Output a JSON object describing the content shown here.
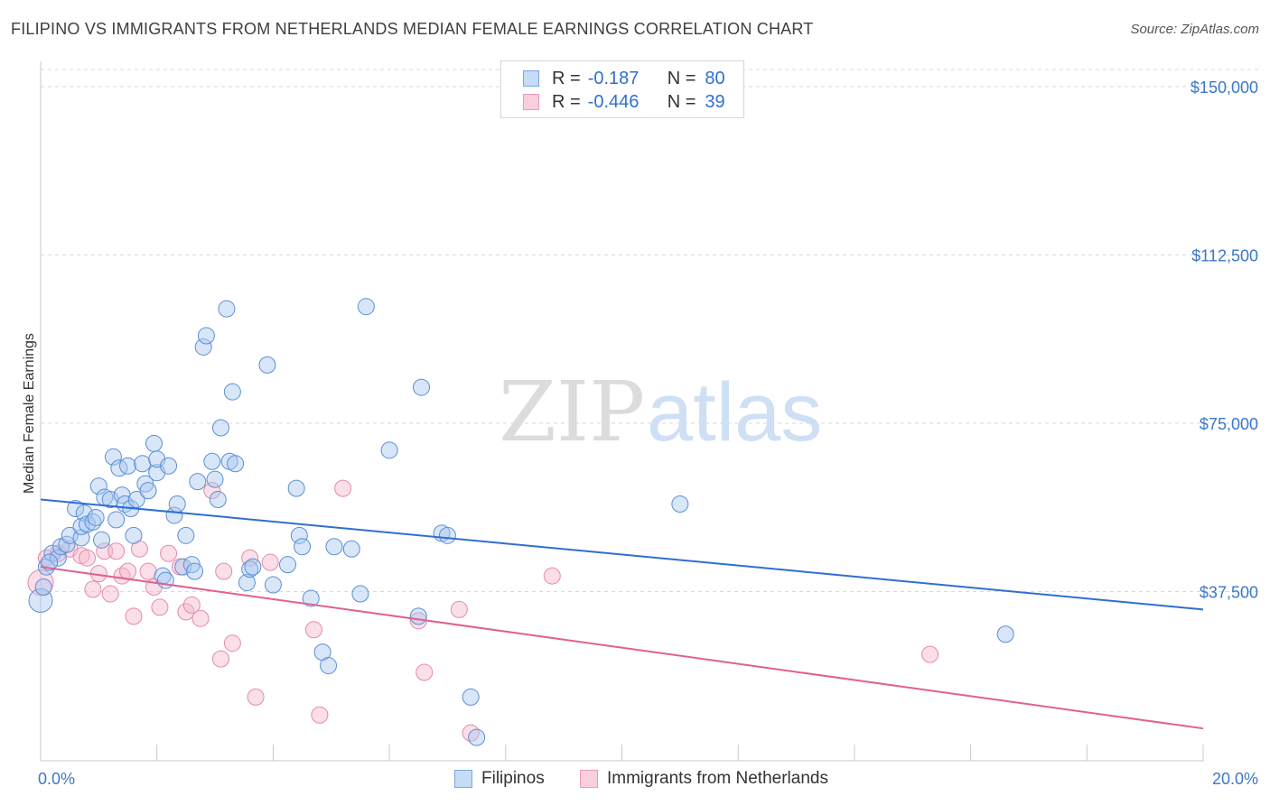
{
  "title": "FILIPINO VS IMMIGRANTS FROM NETHERLANDS MEDIAN FEMALE EARNINGS CORRELATION CHART",
  "source": "Source: ZipAtlas.com",
  "watermark": {
    "zip": "ZIP",
    "atlas": "atlas"
  },
  "legend": {
    "rows": [
      {
        "r_label": "R =",
        "r_value": "-0.187",
        "n_label": "N =",
        "n_value": "80",
        "color": "#a8c8f0"
      },
      {
        "r_label": "R =",
        "r_value": "-0.446",
        "n_label": "N =",
        "n_value": "39",
        "color": "#f5b8cc"
      }
    ]
  },
  "bottom_legend": {
    "filipinos": "Filipinos",
    "netherlands": "Immigrants from Netherlands"
  },
  "colors": {
    "blue_fill": "#a8c8f0",
    "blue_stroke": "#5b8fd6",
    "blue_line": "#2f6fd0",
    "pink_fill": "#f5b8cc",
    "pink_stroke": "#e58aa8",
    "pink_line": "#e0608f",
    "tick_text": "#3a78c9",
    "grid": "#d9d9d9"
  },
  "chart_data": {
    "type": "scatter",
    "title": "FILIPINO VS IMMIGRANTS FROM NETHERLANDS MEDIAN FEMALE EARNINGS CORRELATION CHART",
    "xlabel": "",
    "ylabel": "Median Female Earnings",
    "xlim": [
      0,
      20
    ],
    "ylim": [
      0,
      155000
    ],
    "x_tick_labels": [
      "0.0%",
      "20.0%"
    ],
    "y_ticks": [
      37500,
      75000,
      112500,
      150000
    ],
    "y_tick_labels": [
      "$37,500",
      "$75,000",
      "$112,500",
      "$150,000"
    ],
    "grid": true,
    "series": [
      {
        "name": "Filipinos",
        "trend": {
          "x": [
            0,
            20
          ],
          "y": [
            58000,
            33500
          ]
        },
        "points": [
          [
            0.0,
            35500
          ],
          [
            0.1,
            43000
          ],
          [
            0.2,
            46000
          ],
          [
            0.3,
            45000
          ],
          [
            0.35,
            47500
          ],
          [
            0.45,
            48000
          ],
          [
            0.5,
            50000
          ],
          [
            0.6,
            56000
          ],
          [
            0.7,
            49500
          ],
          [
            0.7,
            52000
          ],
          [
            0.75,
            55000
          ],
          [
            0.8,
            52500
          ],
          [
            0.9,
            53000
          ],
          [
            0.95,
            54000
          ],
          [
            1.0,
            61000
          ],
          [
            1.05,
            49000
          ],
          [
            1.1,
            58500
          ],
          [
            1.2,
            58000
          ],
          [
            1.25,
            67500
          ],
          [
            1.3,
            53500
          ],
          [
            1.35,
            65000
          ],
          [
            1.4,
            59000
          ],
          [
            1.45,
            57000
          ],
          [
            1.5,
            65500
          ],
          [
            1.55,
            56000
          ],
          [
            1.6,
            50000
          ],
          [
            1.65,
            58000
          ],
          [
            1.75,
            66000
          ],
          [
            1.8,
            61500
          ],
          [
            1.85,
            60000
          ],
          [
            1.95,
            70500
          ],
          [
            2.0,
            64000
          ],
          [
            2.0,
            67000
          ],
          [
            2.1,
            41000
          ],
          [
            2.15,
            40000
          ],
          [
            2.2,
            65500
          ],
          [
            2.3,
            54500
          ],
          [
            2.35,
            57000
          ],
          [
            2.45,
            43000
          ],
          [
            2.5,
            50000
          ],
          [
            2.6,
            43500
          ],
          [
            2.65,
            42000
          ],
          [
            2.7,
            62000
          ],
          [
            2.8,
            92000
          ],
          [
            2.85,
            94500
          ],
          [
            2.95,
            66500
          ],
          [
            3.0,
            62500
          ],
          [
            3.05,
            58000
          ],
          [
            3.1,
            74000
          ],
          [
            3.2,
            100500
          ],
          [
            3.25,
            66500
          ],
          [
            3.3,
            82000
          ],
          [
            3.35,
            66000
          ],
          [
            3.55,
            39500
          ],
          [
            3.6,
            42500
          ],
          [
            3.65,
            43000
          ],
          [
            3.9,
            88000
          ],
          [
            4.0,
            39000
          ],
          [
            4.25,
            43500
          ],
          [
            4.4,
            60500
          ],
          [
            4.45,
            50000
          ],
          [
            4.5,
            47500
          ],
          [
            4.65,
            36000
          ],
          [
            4.85,
            24000
          ],
          [
            4.95,
            21000
          ],
          [
            5.05,
            47500
          ],
          [
            5.35,
            47000
          ],
          [
            5.5,
            37000
          ],
          [
            5.6,
            101000
          ],
          [
            6.0,
            69000
          ],
          [
            6.5,
            32000
          ],
          [
            6.55,
            83000
          ],
          [
            6.9,
            50500
          ],
          [
            7.0,
            50000
          ],
          [
            7.4,
            14000
          ],
          [
            7.5,
            5000
          ],
          [
            11.0,
            57000
          ],
          [
            16.6,
            28000
          ],
          [
            0.05,
            38500
          ],
          [
            0.15,
            44000
          ]
        ]
      },
      {
        "name": "Immigrants from Netherlands",
        "trend": {
          "x": [
            0,
            20
          ],
          "y": [
            43000,
            7000
          ]
        },
        "points": [
          [
            0.0,
            39500
          ],
          [
            0.1,
            45000
          ],
          [
            0.3,
            46000
          ],
          [
            0.5,
            47000
          ],
          [
            0.7,
            45500
          ],
          [
            0.8,
            45000
          ],
          [
            0.9,
            38000
          ],
          [
            1.0,
            41500
          ],
          [
            1.1,
            46500
          ],
          [
            1.2,
            37000
          ],
          [
            1.3,
            46500
          ],
          [
            1.4,
            41000
          ],
          [
            1.5,
            42000
          ],
          [
            1.6,
            32000
          ],
          [
            1.7,
            47000
          ],
          [
            1.85,
            42000
          ],
          [
            1.95,
            38500
          ],
          [
            2.05,
            34000
          ],
          [
            2.2,
            46000
          ],
          [
            2.4,
            43000
          ],
          [
            2.5,
            33000
          ],
          [
            2.6,
            34500
          ],
          [
            2.75,
            31500
          ],
          [
            2.95,
            60000
          ],
          [
            3.1,
            22500
          ],
          [
            3.15,
            42000
          ],
          [
            3.3,
            26000
          ],
          [
            3.6,
            45000
          ],
          [
            3.7,
            14000
          ],
          [
            3.95,
            44000
          ],
          [
            4.7,
            29000
          ],
          [
            4.8,
            10000
          ],
          [
            5.2,
            60500
          ],
          [
            6.5,
            31000
          ],
          [
            6.6,
            19500
          ],
          [
            7.2,
            33500
          ],
          [
            7.4,
            6000
          ],
          [
            8.8,
            41000
          ],
          [
            15.3,
            23500
          ]
        ]
      }
    ]
  }
}
